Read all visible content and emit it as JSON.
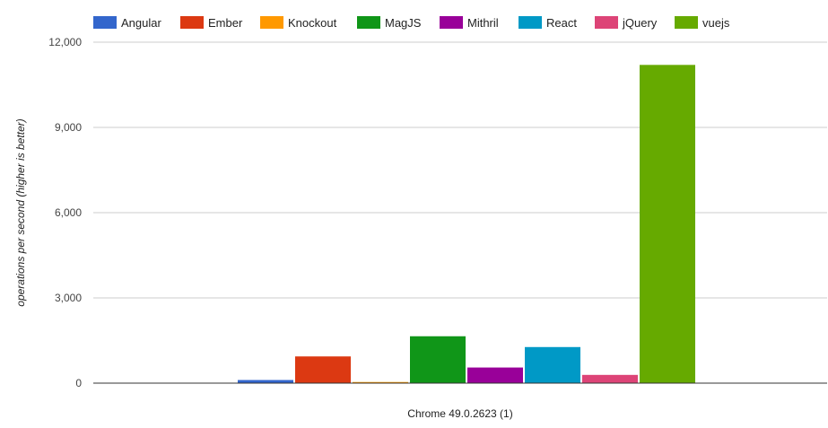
{
  "chart_data": {
    "type": "bar",
    "title": "",
    "xlabel": "",
    "ylabel": "operations per second (higher is better)",
    "categories": [
      "Chrome 49.0.2623 (1)"
    ],
    "ylim": [
      0,
      12000
    ],
    "yticks": [
      0,
      3000,
      6000,
      9000,
      12000
    ],
    "ytick_labels": [
      "0",
      "3,000",
      "6,000",
      "9,000",
      "12,000"
    ],
    "grid": true,
    "legend_position": "top",
    "series": [
      {
        "name": "Angular",
        "color": "#3366cc",
        "values": [
          110
        ]
      },
      {
        "name": "Ember",
        "color": "#dc3912",
        "values": [
          940
        ]
      },
      {
        "name": "Knockout",
        "color": "#ff9900",
        "values": [
          40
        ]
      },
      {
        "name": "MagJS",
        "color": "#109618",
        "values": [
          1650
        ]
      },
      {
        "name": "Mithril",
        "color": "#990099",
        "values": [
          550
        ]
      },
      {
        "name": "React",
        "color": "#0099c6",
        "values": [
          1270
        ]
      },
      {
        "name": "jQuery",
        "color": "#dd4477",
        "values": [
          290
        ]
      },
      {
        "name": "vuejs",
        "color": "#66aa00",
        "values": [
          11200
        ]
      }
    ]
  }
}
